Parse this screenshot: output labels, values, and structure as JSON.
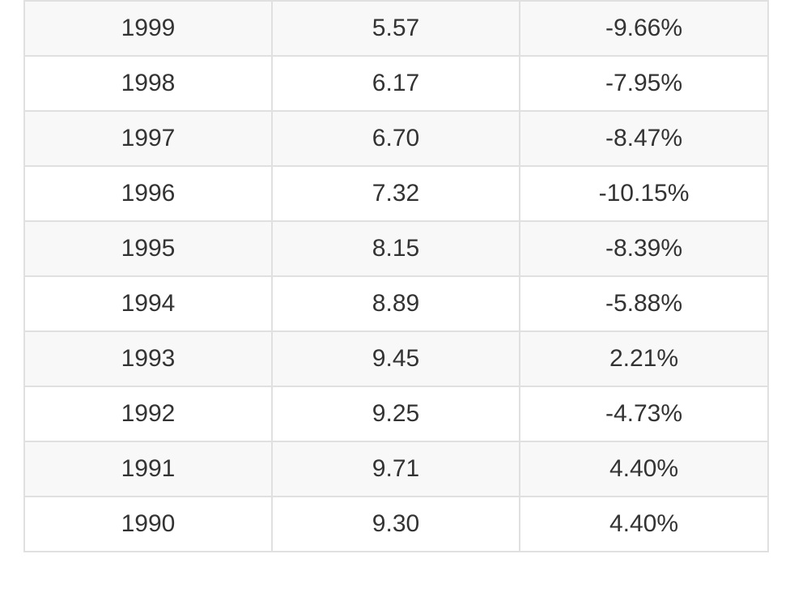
{
  "table": {
    "rows": [
      {
        "year": "1999",
        "value": "5.57",
        "change": "-9.66%"
      },
      {
        "year": "1998",
        "value": "6.17",
        "change": "-7.95%"
      },
      {
        "year": "1997",
        "value": "6.70",
        "change": "-8.47%"
      },
      {
        "year": "1996",
        "value": "7.32",
        "change": "-10.15%"
      },
      {
        "year": "1995",
        "value": "8.15",
        "change": "-8.39%"
      },
      {
        "year": "1994",
        "value": "8.89",
        "change": "-5.88%"
      },
      {
        "year": "1993",
        "value": "9.45",
        "change": "2.21%"
      },
      {
        "year": "1992",
        "value": "9.25",
        "change": "-4.73%"
      },
      {
        "year": "1991",
        "value": "9.71",
        "change": "4.40%"
      },
      {
        "year": "1990",
        "value": "9.30",
        "change": "4.40%"
      }
    ]
  },
  "colors": {
    "row_alt": "#f8f8f8",
    "row_base": "#ffffff",
    "border": "#e0e0e0",
    "text": "#333333"
  }
}
